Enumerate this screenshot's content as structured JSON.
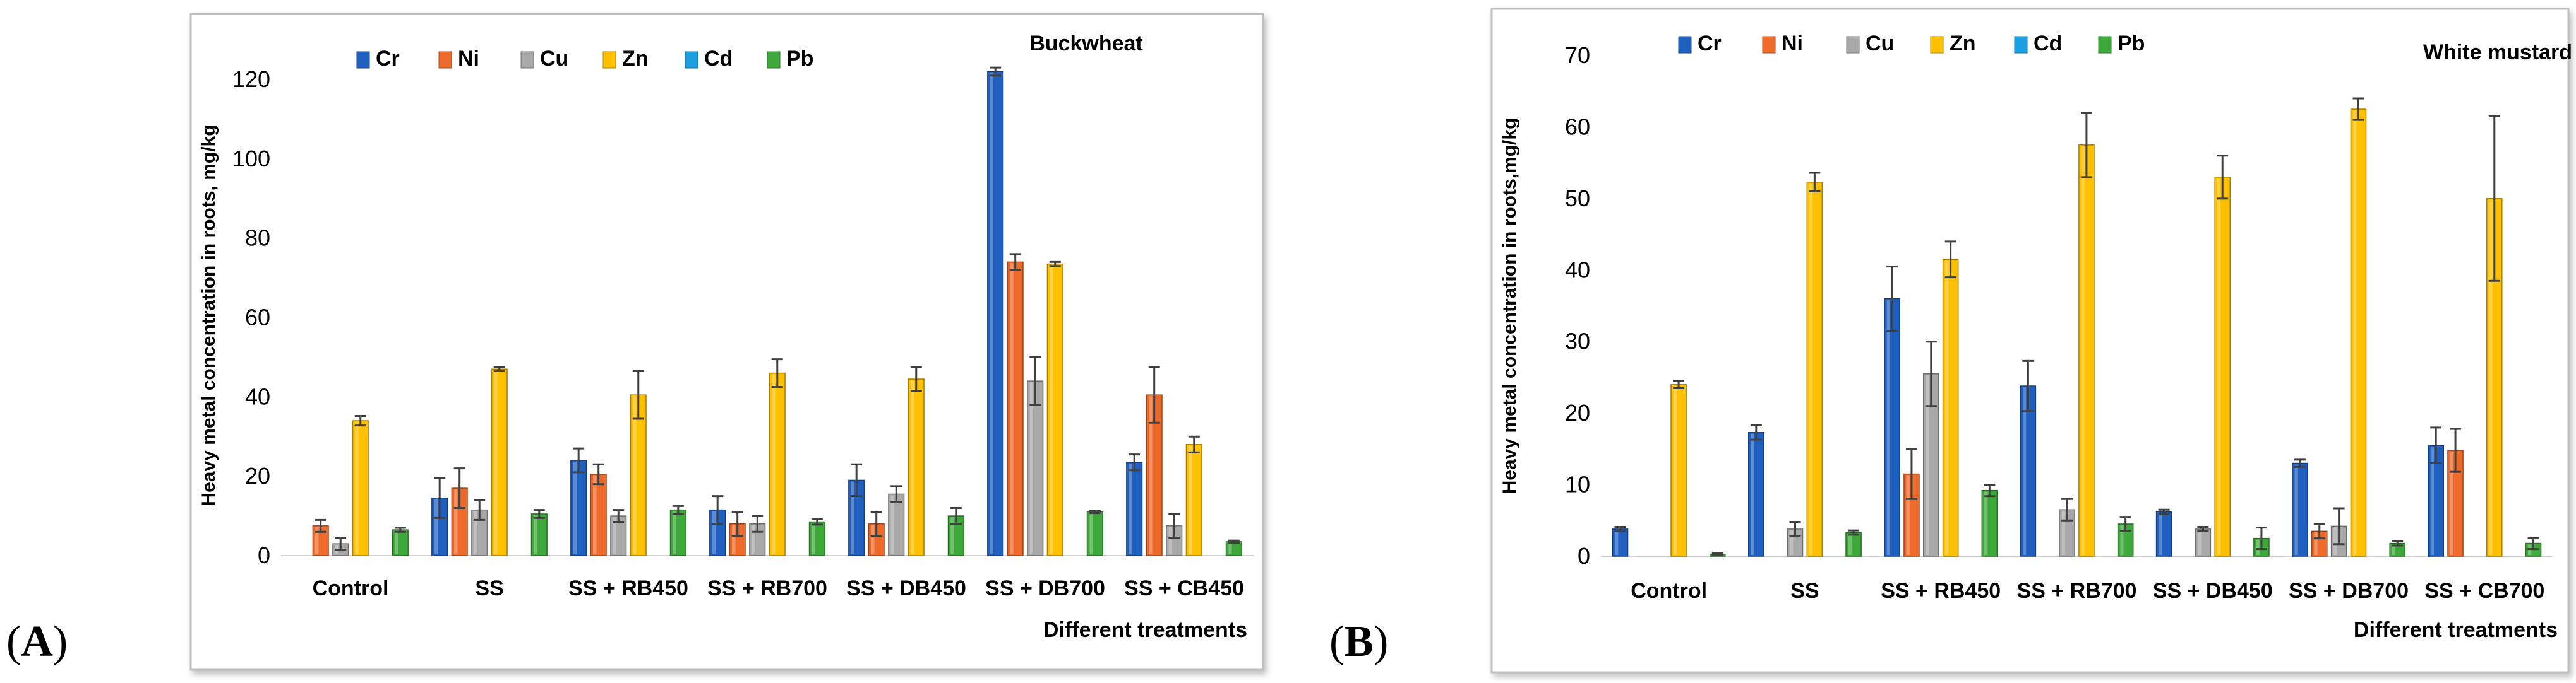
{
  "panels": [
    {
      "letter_open": "(",
      "letter": "A",
      "letter_close": ")"
    },
    {
      "letter_open": "(",
      "letter": "B",
      "letter_close": ")"
    }
  ],
  "colors": {
    "Cr": "#1f5fc0",
    "Ni": "#ee6a2a",
    "Cu": "#a8a8a8",
    "Zn": "#ffc000",
    "Cd": "#1a9ee0",
    "Pb": "#3ea83a"
  },
  "chart_data": [
    {
      "type": "bar",
      "title": "Buckwheat",
      "xlabel": "Different treatments",
      "ylabel": "Heavy metal concentration in roots, mg/kg",
      "ylim": [
        0,
        120
      ],
      "yticks": [
        0,
        20,
        40,
        60,
        80,
        100,
        120
      ],
      "categories": [
        "Control",
        "SS",
        "SS + RB450",
        "SS + RB700",
        "SS + DB450",
        "SS + DB700",
        "SS + CB450"
      ],
      "series": [
        {
          "name": "Cr",
          "values": [
            0,
            14.5,
            24,
            11.5,
            19,
            122,
            23.5
          ],
          "errors": [
            0,
            5,
            3,
            3.5,
            4,
            1,
            2
          ]
        },
        {
          "name": "Ni",
          "values": [
            7.5,
            17,
            20.5,
            8,
            8,
            74,
            40.5
          ],
          "errors": [
            1.5,
            5,
            2.5,
            3,
            3,
            2,
            7
          ]
        },
        {
          "name": "Cu",
          "values": [
            3,
            11.5,
            10,
            8,
            15.5,
            44,
            7.5
          ],
          "errors": [
            1.5,
            2.5,
            1.5,
            2,
            2,
            6,
            3
          ]
        },
        {
          "name": "Zn",
          "values": [
            34,
            47,
            40.5,
            46,
            44.5,
            73.5,
            28
          ],
          "errors": [
            1.2,
            0.5,
            6,
            3.5,
            3,
            0.5,
            2
          ]
        },
        {
          "name": "Cd",
          "values": [
            0,
            0,
            0,
            0,
            0,
            0,
            0
          ],
          "errors": [
            0,
            0,
            0,
            0,
            0,
            0,
            0
          ]
        },
        {
          "name": "Pb",
          "values": [
            6.5,
            10.5,
            11.5,
            8.5,
            10,
            11,
            3.5
          ],
          "errors": [
            0.5,
            1,
            1,
            0.7,
            2,
            0.3,
            0.3
          ]
        }
      ]
    },
    {
      "type": "bar",
      "title": "White mustard",
      "xlabel": "Different treatments",
      "ylabel": "Heavy metal concentration in roots,mg/kg",
      "ylim": [
        0,
        70
      ],
      "yticks": [
        0,
        10,
        20,
        30,
        40,
        50,
        60,
        70
      ],
      "categories": [
        "Control",
        "SS",
        "SS + RB450",
        "SS + RB700",
        "SS + DB450",
        "SS + DB700",
        "SS + CB700"
      ],
      "series": [
        {
          "name": "Cr",
          "values": [
            3.8,
            17.3,
            36,
            23.8,
            6.2,
            13,
            15.5
          ],
          "errors": [
            0.3,
            1,
            4.5,
            3.5,
            0.3,
            0.5,
            2.5
          ]
        },
        {
          "name": "Ni",
          "values": [
            0,
            0,
            11.5,
            0,
            0,
            3.5,
            14.8
          ],
          "errors": [
            0,
            0,
            3.5,
            0,
            0,
            1,
            3
          ]
        },
        {
          "name": "Cu",
          "values": [
            0,
            3.8,
            25.5,
            6.5,
            3.8,
            4.2,
            0
          ],
          "errors": [
            0,
            1,
            4.5,
            1.5,
            0.3,
            2.5,
            0
          ]
        },
        {
          "name": "Zn",
          "values": [
            24,
            52.3,
            41.5,
            57.5,
            53,
            62.5,
            50
          ],
          "errors": [
            0.5,
            1.3,
            2.5,
            4.5,
            3,
            1.5,
            11.5
          ]
        },
        {
          "name": "Cd",
          "values": [
            0,
            0,
            0,
            0,
            0,
            0,
            0
          ],
          "errors": [
            0,
            0,
            0,
            0,
            0,
            0,
            0
          ]
        },
        {
          "name": "Pb",
          "values": [
            0.3,
            3.3,
            9.2,
            4.5,
            2.5,
            1.8,
            1.8
          ],
          "errors": [
            0.1,
            0.3,
            0.8,
            1,
            1.5,
            0.3,
            0.8
          ]
        }
      ]
    }
  ]
}
